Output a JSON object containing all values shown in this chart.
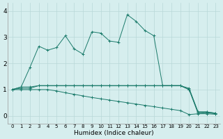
{
  "title": "",
  "xlabel": "Humidex (Indice chaleur)",
  "ylabel": "",
  "background_color": "#d6eeee",
  "grid_color": "#b8d8d8",
  "line_color": "#1a7a6a",
  "xlim": [
    -0.5,
    23.5
  ],
  "ylim": [
    -0.3,
    4.3
  ],
  "xticks": [
    0,
    1,
    2,
    3,
    4,
    5,
    6,
    7,
    8,
    9,
    10,
    11,
    12,
    13,
    14,
    15,
    16,
    17,
    18,
    19,
    20,
    21,
    22,
    23
  ],
  "yticks": [
    0,
    1,
    2,
    3,
    4
  ],
  "series1_x": [
    0,
    1,
    2,
    3,
    4,
    5,
    6,
    7,
    8,
    9,
    10,
    11,
    12,
    13,
    14,
    15,
    16,
    17,
    18,
    19,
    20,
    21,
    22,
    23
  ],
  "series1_y": [
    1.0,
    1.1,
    1.1,
    1.15,
    1.15,
    1.15,
    1.15,
    1.15,
    1.15,
    1.15,
    1.15,
    1.15,
    1.15,
    1.15,
    1.15,
    1.15,
    1.15,
    1.15,
    1.15,
    1.15,
    1.05,
    0.15,
    0.15,
    0.1
  ],
  "series2_x": [
    0,
    1,
    2,
    3,
    4,
    5,
    6,
    7,
    8,
    9,
    10,
    11,
    12,
    13,
    14,
    15,
    16,
    17,
    18,
    19,
    20,
    21,
    22,
    23
  ],
  "series2_y": [
    1.0,
    1.05,
    1.05,
    1.15,
    1.15,
    1.15,
    1.15,
    1.15,
    1.15,
    1.15,
    1.15,
    1.15,
    1.15,
    1.15,
    1.15,
    1.15,
    1.15,
    1.15,
    1.15,
    1.15,
    1.0,
    0.1,
    0.12,
    0.08
  ],
  "series3_x": [
    0,
    1,
    2,
    3,
    4,
    5,
    6,
    7,
    8,
    9,
    10,
    11,
    12,
    13,
    14,
    15,
    16,
    17,
    18,
    19,
    20,
    21,
    22,
    23
  ],
  "series3_y": [
    1.0,
    1.1,
    1.85,
    2.65,
    2.5,
    2.6,
    3.05,
    2.55,
    2.35,
    3.2,
    3.15,
    2.85,
    2.8,
    3.85,
    3.6,
    3.25,
    3.05,
    1.15,
    1.15,
    1.15,
    1.0,
    0.15,
    0.15,
    0.1
  ],
  "series4_x": [
    0,
    1,
    2,
    3,
    4,
    5,
    6,
    7,
    8,
    9,
    10,
    11,
    12,
    13,
    14,
    15,
    16,
    17,
    18,
    19,
    20,
    21,
    22,
    23
  ],
  "series4_y": [
    1.0,
    1.0,
    1.0,
    1.0,
    1.0,
    0.95,
    0.88,
    0.82,
    0.76,
    0.7,
    0.65,
    0.6,
    0.55,
    0.5,
    0.45,
    0.4,
    0.35,
    0.3,
    0.25,
    0.2,
    0.05,
    0.08,
    0.08,
    0.06
  ]
}
